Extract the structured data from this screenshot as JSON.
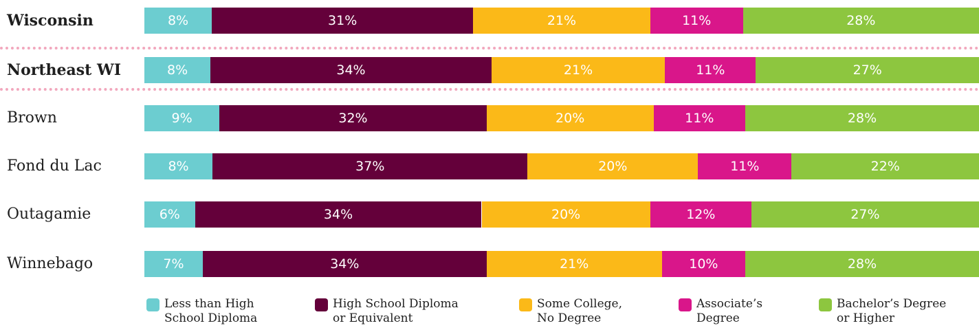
{
  "chart_data": {
    "type": "bar",
    "orientation": "horizontal",
    "stacked": true,
    "categories": [
      "Wisconsin",
      "Northeast WI",
      "Brown",
      "Fond du Lac",
      "Outagamie",
      "Winnebago"
    ],
    "bold_categories": [
      "Wisconsin",
      "Northeast WI"
    ],
    "series": [
      {
        "name": "Less than High School Diploma",
        "color": "#6ccdd0",
        "values": [
          8,
          8,
          9,
          8,
          6,
          7
        ]
      },
      {
        "name": "High School Diploma or Equivalent",
        "color": "#64003a",
        "values": [
          31,
          34,
          32,
          37,
          34,
          34
        ]
      },
      {
        "name": "Some College, No Degree",
        "color": "#fbb918",
        "values": [
          21,
          21,
          20,
          20,
          20,
          21
        ]
      },
      {
        "name": "Associate’s Degree",
        "color": "#d9168a",
        "values": [
          11,
          11,
          11,
          11,
          12,
          10
        ]
      },
      {
        "name": "Bachelor’s Degree or Higher",
        "color": "#8dc63f",
        "values": [
          28,
          27,
          28,
          22,
          27,
          28
        ]
      }
    ],
    "value_suffix": "%",
    "legend_placement": "bottom",
    "grid": false
  },
  "legend": [
    {
      "text": "Less than High\nSchool Diploma",
      "color": "#6ccdd0"
    },
    {
      "text": "High School Diploma\nor Equivalent",
      "color": "#64003a"
    },
    {
      "text": "Some College,\nNo Degree",
      "color": "#fbb918"
    },
    {
      "text": "Associate’s\nDegree",
      "color": "#d9168a"
    },
    {
      "text": "Bachelor’s Degree\nor Higher",
      "color": "#8dc63f"
    }
  ]
}
